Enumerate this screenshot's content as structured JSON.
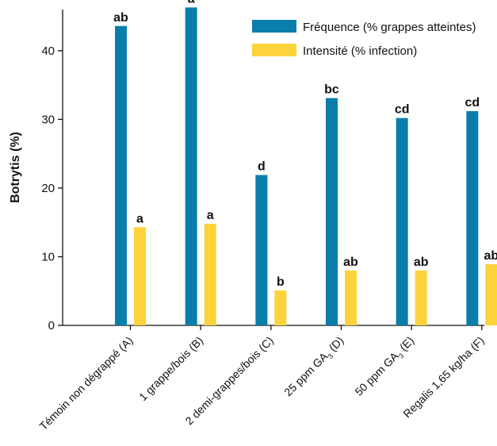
{
  "chart_data": {
    "type": "bar",
    "title": "",
    "xlabel": "",
    "ylabel": "Botrytis (%)",
    "ylim": [
      0,
      46
    ],
    "yticks": [
      0,
      10,
      20,
      30,
      40
    ],
    "grid": false,
    "legend_position": "top-right",
    "categories": [
      {
        "text": "Témoin non dégrappé (A)",
        "sub": ""
      },
      {
        "text": "1 grappe/bois (B)",
        "sub": ""
      },
      {
        "text": "2 demi-grappes/bois (C)",
        "sub": ""
      },
      {
        "text": "25 ppm GA",
        "sub": "3",
        "after": " (D)"
      },
      {
        "text": "50 ppm GA",
        "sub": "3",
        "after": " (E)"
      },
      {
        "text": "Regalis 1,65 kg/ha (F)",
        "sub": ""
      }
    ],
    "series": [
      {
        "name": "Fréquence (% grappes atteintes)",
        "color": "#0a7eab",
        "values": [
          43.6,
          46.3,
          21.9,
          33.1,
          30.2,
          31.2
        ],
        "labels": [
          "ab",
          "a",
          "d",
          "bc",
          "cd",
          "cd"
        ]
      },
      {
        "name": "Intensité (% infection)",
        "color": "#fdd33b",
        "values": [
          14.3,
          14.8,
          5.1,
          8.0,
          8.0,
          8.9
        ],
        "labels": [
          "a",
          "a",
          "b",
          "ab",
          "ab",
          "ab"
        ]
      }
    ]
  }
}
